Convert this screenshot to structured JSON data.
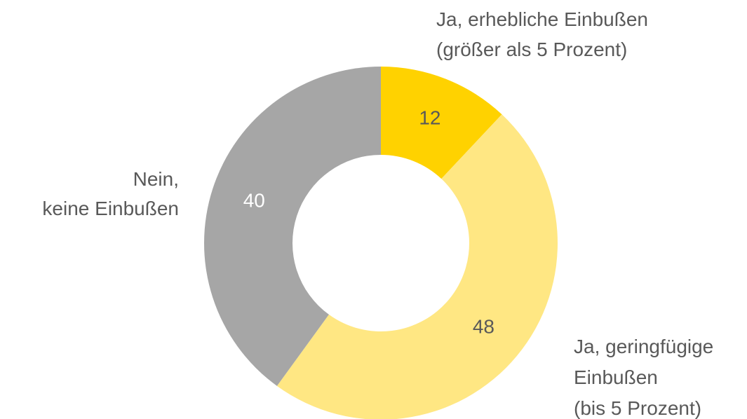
{
  "chart_data": {
    "type": "donut",
    "categories": [
      [
        "Ja, erhebliche Einbußen",
        "(größer als 5 Prozent)"
      ],
      [
        "Ja, geringfügige",
        "Einbußen",
        "(bis 5 Prozent)"
      ],
      [
        "Nein,",
        "keine Einbußen"
      ]
    ],
    "values": [
      12,
      48,
      40
    ],
    "colors": [
      "#ffd200",
      "#ffe783",
      "#a6a6a6"
    ]
  }
}
